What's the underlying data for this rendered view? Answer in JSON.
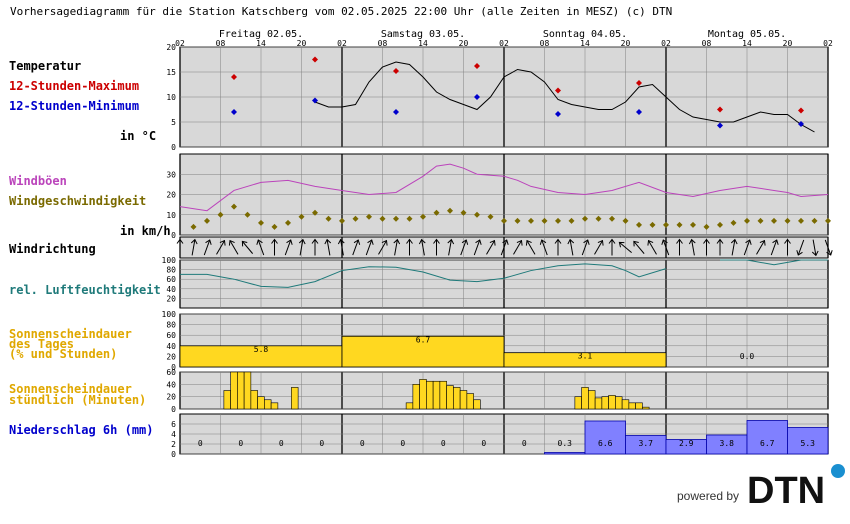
{
  "title": "Vorhersagediagramm für die Station Katschberg vom 02.05.2025 22:00 Uhr (alle Zeiten in MESZ)   (c) DTN",
  "hour_ticks": [
    "02",
    "08",
    "14",
    "20",
    "02",
    "08",
    "14",
    "20",
    "02",
    "08",
    "14",
    "20",
    "02",
    "08",
    "14",
    "20",
    "02"
  ],
  "days": [
    "Freitag 02.05.",
    "Samstag 03.05.",
    "Sonntag 04.05.",
    "Montag 05.05."
  ],
  "labels": {
    "temperature": "Temperatur",
    "max12": "12-Stunden-Maximum",
    "min12": "12-Stunden-Minimum",
    "temp_unit": "in °C",
    "gusts": "Windböen",
    "windspeed": "Windgeschwindigkeit",
    "wind_unit": "in km/h",
    "winddir": "Windrichtung",
    "humidity": "rel. Luftfeuchtigkeit",
    "sun_day_1": "Sonnenscheindauer",
    "sun_day_2": "des Tages",
    "sun_day_3": "(% und Stunden)",
    "sun_hour_1": "Sonnenscheindauer",
    "sun_hour_2": "stündlich (Minuten)",
    "precip": "Niederschlag 6h (mm)"
  },
  "branding": {
    "powered_by": "powered by",
    "logo": "DTN"
  },
  "colors": {
    "max": "#cc0000",
    "min": "#0000cc",
    "gusts": "#bb44bb",
    "windspeed": "#7a6a00",
    "humidity": "#1f7a7a",
    "sun": "#ffd820",
    "precip": "#8080ff",
    "precip_label": "#0000cc",
    "plot_bg": "#d8d8d8",
    "grid": "#808080"
  },
  "chart_data": [
    {
      "type": "line",
      "name": "temperature",
      "x_unit": "hours since 02.05. 02:00",
      "ylim": [
        0,
        20
      ],
      "yticks": [
        0,
        5,
        10,
        15,
        20
      ],
      "x": [
        20,
        22,
        24,
        26,
        28,
        30,
        32,
        34,
        36,
        38,
        40,
        42,
        44,
        46,
        48,
        50,
        52,
        54,
        56,
        58,
        60,
        62,
        64,
        66,
        68,
        70,
        72,
        74,
        76,
        78,
        80,
        82,
        84,
        86,
        88,
        90,
        92,
        94
      ],
      "y": [
        9,
        8,
        8,
        8.5,
        13,
        16,
        17,
        16.5,
        14,
        11,
        9.5,
        8.5,
        7.5,
        10,
        14,
        15.5,
        15,
        13,
        9.5,
        8.5,
        8,
        7.5,
        7.5,
        9,
        12,
        12.5,
        10,
        7.5,
        6,
        5.5,
        5,
        5,
        6,
        7,
        6.5,
        6.5,
        4.5,
        3
      ],
      "max12": [
        {
          "x": 8,
          "y": 14
        },
        {
          "x": 20,
          "y": 17.5
        },
        {
          "x": 32,
          "y": 15.2
        },
        {
          "x": 44,
          "y": 16.2
        },
        {
          "x": 56,
          "y": 11.3
        },
        {
          "x": 68,
          "y": 12.8
        },
        {
          "x": 80,
          "y": 7.5
        },
        {
          "x": 92,
          "y": 7.3
        }
      ],
      "min12": [
        {
          "x": 8,
          "y": 7
        },
        {
          "x": 20,
          "y": 9.3
        },
        {
          "x": 32,
          "y": 7
        },
        {
          "x": 44,
          "y": 10
        },
        {
          "x": 56,
          "y": 6.6
        },
        {
          "x": 68,
          "y": 7
        },
        {
          "x": 80,
          "y": 4.3
        },
        {
          "x": 92,
          "y": 4.6
        }
      ]
    },
    {
      "type": "line",
      "name": "wind",
      "ylim": [
        0,
        40
      ],
      "yticks": [
        0,
        10,
        20,
        30
      ],
      "gusts_x": [
        0,
        4,
        8,
        12,
        16,
        20,
        24,
        28,
        32,
        36,
        38,
        40,
        42,
        44,
        48,
        50,
        52,
        56,
        60,
        64,
        68,
        72,
        76,
        80,
        84,
        88,
        90,
        92,
        96
      ],
      "gusts_y": [
        14,
        12,
        22,
        26,
        27,
        24,
        22,
        20,
        21,
        29,
        34,
        35,
        33,
        30,
        29,
        27,
        24,
        21,
        20,
        22,
        26,
        21,
        19,
        22,
        24,
        22,
        21,
        19,
        20
      ],
      "speed_x": [
        2,
        4,
        6,
        8,
        10,
        12,
        14,
        16,
        18,
        20,
        22,
        24,
        26,
        28,
        30,
        32,
        34,
        36,
        38,
        40,
        42,
        44,
        46,
        48,
        50,
        52,
        54,
        56,
        58,
        60,
        62,
        64,
        66,
        68,
        70,
        72,
        74,
        76,
        78,
        80,
        82,
        84,
        86,
        88,
        90,
        92,
        94,
        96
      ],
      "speed_y": [
        4,
        7,
        10,
        14,
        10,
        6,
        4,
        6,
        9,
        11,
        8,
        7,
        8,
        9,
        8,
        8,
        8,
        9,
        11,
        12,
        11,
        10,
        9,
        7,
        7,
        7,
        7,
        7,
        7,
        8,
        8,
        8,
        7,
        5,
        5,
        5,
        5,
        5,
        4,
        5,
        6,
        7,
        7,
        7,
        7,
        7,
        7,
        7
      ]
    },
    {
      "type": "vector",
      "name": "wind_direction",
      "x": [
        0,
        2,
        4,
        6,
        8,
        10,
        12,
        14,
        16,
        18,
        20,
        22,
        24,
        26,
        28,
        30,
        32,
        34,
        36,
        38,
        40,
        42,
        44,
        46,
        48,
        50,
        52,
        54,
        56,
        58,
        60,
        62,
        64,
        66,
        68,
        70,
        72,
        74,
        76,
        78,
        80,
        82,
        84,
        86,
        88,
        90,
        92,
        94,
        96
      ],
      "deg_to": [
        0,
        10,
        20,
        30,
        330,
        320,
        340,
        0,
        20,
        10,
        0,
        350,
        350,
        20,
        20,
        30,
        10,
        0,
        350,
        0,
        10,
        20,
        20,
        30,
        20,
        30,
        330,
        340,
        0,
        350,
        20,
        30,
        0,
        310,
        320,
        330,
        340,
        0,
        350,
        0,
        0,
        10,
        20,
        30,
        20,
        0,
        200,
        170,
        160
      ]
    },
    {
      "type": "line",
      "name": "humidity",
      "ylim": [
        0,
        100
      ],
      "yticks": [
        20,
        40,
        60,
        80,
        100
      ],
      "x": [
        0,
        4,
        8,
        12,
        16,
        20,
        24,
        28,
        32,
        36,
        40,
        44,
        48,
        52,
        56,
        60,
        64,
        66,
        68,
        72,
        80,
        84,
        88,
        92,
        96
      ],
      "y": [
        70,
        70,
        60,
        45,
        43,
        55,
        78,
        86,
        85,
        75,
        58,
        55,
        62,
        78,
        88,
        92,
        88,
        78,
        65,
        82,
        100,
        100,
        90,
        100,
        100
      ],
      "gaps": [
        [
          72,
          80
        ]
      ]
    },
    {
      "type": "bar",
      "name": "sunshine_daily",
      "ylim": [
        0,
        100
      ],
      "yticks": [
        0,
        20,
        40,
        60,
        80,
        100
      ],
      "days": [
        "Freitag 02.05.",
        "Samstag 03.05.",
        "Sonntag 04.05.",
        "Montag 05.05."
      ],
      "percent": [
        40,
        58,
        27,
        0
      ],
      "hours": [
        "5.8",
        "6.7",
        "3.1",
        "0.0"
      ]
    },
    {
      "type": "bar",
      "name": "sunshine_hourly",
      "ylim": [
        0,
        60
      ],
      "yticks": [
        0,
        20,
        40,
        60
      ],
      "hours": [
        5,
        6,
        7,
        8,
        9,
        10,
        11,
        12,
        13,
        14,
        15,
        16,
        17,
        18,
        19,
        20,
        21,
        22,
        23,
        24,
        25,
        26,
        27,
        28,
        29,
        30,
        31,
        32,
        33,
        34,
        35,
        36,
        37,
        38,
        39,
        40,
        41,
        42,
        43,
        44,
        45,
        46,
        47,
        48,
        49,
        50,
        51,
        52,
        53,
        54,
        55,
        56,
        57,
        58,
        59,
        60,
        61,
        62,
        63,
        64,
        65,
        66,
        67,
        68,
        69,
        70,
        71,
        72,
        73,
        74,
        75,
        76,
        77,
        78,
        79,
        80,
        81,
        82,
        83,
        84,
        85,
        86,
        87,
        88,
        89,
        90,
        91,
        92,
        93,
        94,
        95
      ],
      "minutes": [
        0,
        0,
        30,
        60,
        60,
        60,
        30,
        20,
        15,
        10,
        0,
        0,
        35,
        0,
        0,
        0,
        0,
        0,
        0,
        0,
        0,
        0,
        0,
        0,
        0,
        0,
        0,
        0,
        0,
        10,
        40,
        48,
        45,
        45,
        45,
        38,
        35,
        30,
        25,
        15,
        0,
        0,
        0,
        0,
        0,
        0,
        0,
        0,
        0,
        0,
        0,
        0,
        0,
        0,
        20,
        35,
        30,
        18,
        20,
        22,
        20,
        15,
        10,
        10,
        3,
        0,
        0,
        0,
        0,
        0,
        0,
        0,
        0,
        0,
        0,
        0,
        0,
        0,
        0,
        0,
        0,
        0,
        0,
        0,
        0,
        0,
        0,
        0,
        0,
        0,
        0
      ]
    },
    {
      "type": "bar",
      "name": "precipitation_6h",
      "ylim": [
        0,
        8
      ],
      "yticks": [
        0,
        2,
        4,
        6
      ],
      "labels": [
        "0",
        "0",
        "0",
        "0",
        "0",
        "0",
        "0",
        "0",
        "0",
        "0.3",
        "6.6",
        "3.7",
        "2.9",
        "3.8",
        "6.7",
        "5.3"
      ],
      "values": [
        0,
        0,
        0,
        0,
        0,
        0,
        0,
        0,
        0,
        0.3,
        6.6,
        3.7,
        2.9,
        3.8,
        6.7,
        5.3
      ]
    }
  ]
}
